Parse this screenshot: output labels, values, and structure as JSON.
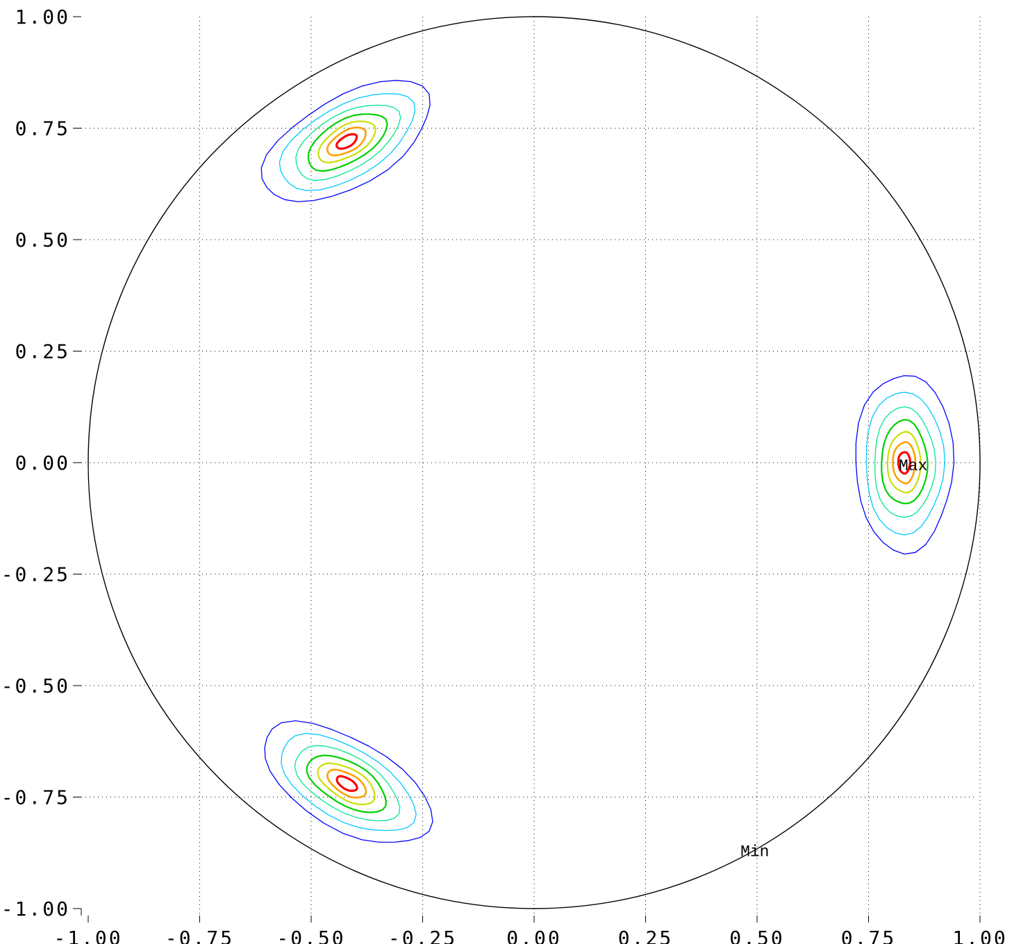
{
  "chart_data": {
    "type": "contour",
    "title": "",
    "xlabel": "",
    "ylabel": "",
    "xlim": [
      -1.0,
      1.0
    ],
    "ylim": [
      -1.0,
      1.0
    ],
    "grid": true,
    "grid_style": "dotted",
    "x_ticks": [
      "-1.00",
      "-0.75",
      "-0.50",
      "-0.25",
      "0.00",
      "0.25",
      "0.50",
      "0.75",
      "1.00"
    ],
    "y_ticks": [
      "1.00",
      "0.75",
      "0.50",
      "0.25",
      "0.00",
      "-0.25",
      "-0.50",
      "-0.75",
      "-1.00"
    ],
    "x_tick_values": [
      -1.0,
      -0.75,
      -0.5,
      -0.25,
      0.0,
      0.25,
      0.5,
      0.75,
      1.0
    ],
    "y_tick_values": [
      1.0,
      0.75,
      0.5,
      0.25,
      0.0,
      -0.25,
      -0.5,
      -0.75,
      -1.0
    ],
    "boundary_circle": {
      "center": [
        0.0,
        0.0
      ],
      "radius": 1.0,
      "color": "#000000"
    },
    "levels": [
      {
        "name": "level-1",
        "color": "#0000ff",
        "scale": 1.0
      },
      {
        "name": "level-2",
        "color": "#00c8ff",
        "scale": 0.8
      },
      {
        "name": "level-3",
        "color": "#00e890",
        "scale": 0.62
      },
      {
        "name": "level-4",
        "color": "#00d000",
        "scale": 0.47
      },
      {
        "name": "level-5",
        "color": "#c8e000",
        "scale": 0.34
      },
      {
        "name": "level-6",
        "color": "#ffa000",
        "scale": 0.23
      },
      {
        "name": "level-7",
        "color": "#ff0000",
        "scale": 0.12
      }
    ],
    "peaks": [
      {
        "name": "peak-right",
        "center": [
          0.83,
          0.0
        ],
        "semi_axes": [
          0.11,
          0.2
        ],
        "angle_deg": 0
      },
      {
        "name": "peak-upper-left",
        "center": [
          -0.42,
          0.72
        ],
        "semi_axes": [
          0.21,
          0.1
        ],
        "angle_deg": 30
      },
      {
        "name": "peak-lower-left",
        "center": [
          -0.42,
          -0.72
        ],
        "semi_axes": [
          0.21,
          0.1
        ],
        "angle_deg": -30
      }
    ],
    "annotations": [
      {
        "text": "Max",
        "x": 0.85,
        "y": -0.005
      },
      {
        "text": "Min",
        "x": 0.495,
        "y": -0.87
      }
    ]
  }
}
